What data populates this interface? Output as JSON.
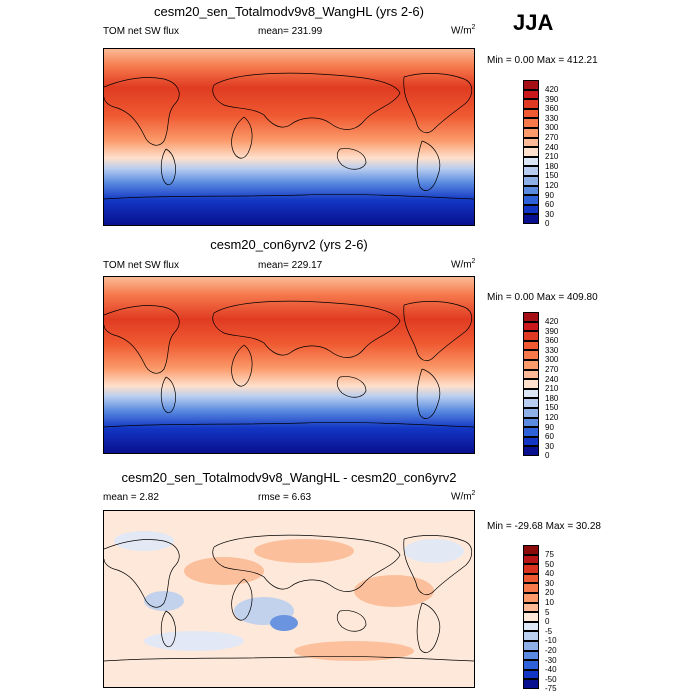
{
  "season": "JJA",
  "chart_data": [
    {
      "type": "heatmap",
      "title": "cesm20_sen_Totalmodv9v8_WangHL (yrs 2-6)",
      "variable": "TOM net SW flux",
      "mean_label": "mean= 231.99",
      "units": "W/m",
      "units_sup": "2",
      "stats": "Min =   0.00 Max = 412.21",
      "min": 0.0,
      "max": 412.21,
      "mean": 231.99,
      "levels": [
        "420",
        "390",
        "360",
        "330",
        "300",
        "270",
        "240",
        "210",
        "180",
        "150",
        "120",
        "90",
        "60",
        "30",
        "0"
      ],
      "colors": [
        "#a50f15",
        "#cb181d",
        "#e03b22",
        "#ef5a32",
        "#f6794c",
        "#fb9a6a",
        "#fcbb96",
        "#fee0cc",
        "#dbe6f6",
        "#b8cdef",
        "#8fb0e6",
        "#5a8be0",
        "#2f62d8",
        "#1336c4",
        "#08108f"
      ]
    },
    {
      "type": "heatmap",
      "title": "cesm20_con6yrv2 (yrs 2-6)",
      "variable": "TOM net SW flux",
      "mean_label": "mean= 229.17",
      "units": "W/m",
      "units_sup": "2",
      "stats": "Min =   0.00 Max = 409.80",
      "min": 0.0,
      "max": 409.8,
      "mean": 229.17,
      "levels": [
        "420",
        "390",
        "360",
        "330",
        "300",
        "270",
        "240",
        "210",
        "180",
        "150",
        "120",
        "90",
        "60",
        "30",
        "0"
      ],
      "colors": [
        "#a50f15",
        "#cb181d",
        "#e03b22",
        "#ef5a32",
        "#f6794c",
        "#fb9a6a",
        "#fcbb96",
        "#fee0cc",
        "#dbe6f6",
        "#b8cdef",
        "#8fb0e6",
        "#5a8be0",
        "#2f62d8",
        "#1336c4",
        "#08108f"
      ]
    },
    {
      "type": "heatmap",
      "title": "cesm20_sen_Totalmodv9v8_WangHL - cesm20_con6yrv2",
      "mean_label": "mean =   2.82",
      "rmse_label": "rmse =   6.63",
      "units": "W/m",
      "units_sup": "2",
      "stats": "Min = -29.68 Max =  30.28",
      "min": -29.68,
      "max": 30.28,
      "mean": 2.82,
      "rmse": 6.63,
      "levels": [
        "75",
        "50",
        "40",
        "30",
        "20",
        "10",
        "5",
        "0",
        "-5",
        "-10",
        "-20",
        "-30",
        "-40",
        "-50",
        "-75"
      ],
      "colors": [
        "#8b0a0a",
        "#b81616",
        "#d9331f",
        "#ef5a32",
        "#f6794c",
        "#fb9a6a",
        "#fcbb96",
        "#fee8d9",
        "#dfe8f7",
        "#bcd0ef",
        "#8fb0e6",
        "#5a8be0",
        "#2f62d8",
        "#1336c4",
        "#08108f"
      ]
    }
  ]
}
